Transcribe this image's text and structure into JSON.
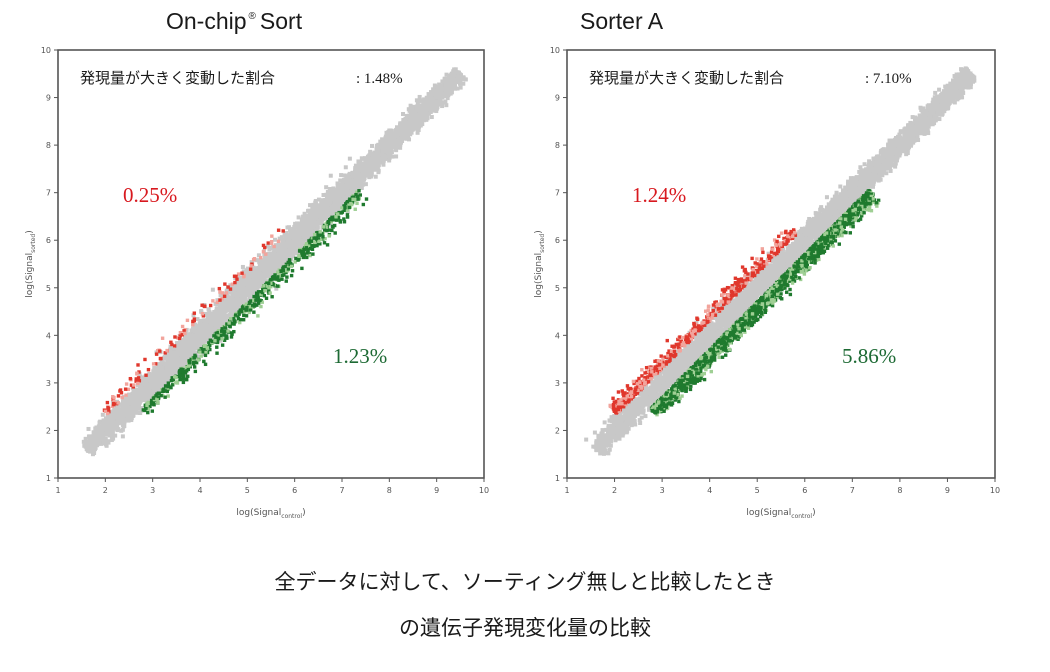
{
  "colors": {
    "background": "#c8c8c8",
    "up": "#e0372c",
    "down": "#1f7a2e",
    "up_text": "#d8191f",
    "down_text": "#1d6a34",
    "frame": "#555555"
  },
  "caption": {
    "line1": "全データに対して、ソーティング無しと比較したとき",
    "line2": "の遺伝子発現変化量の比較"
  },
  "chart_data": [
    {
      "type": "scatter",
      "panel_title": "On-chip",
      "panel_title_mark": "®",
      "panel_title_suffix": "Sort",
      "ratio_label": "発現量が大きく変動した割合",
      "ratio_value": ": 1.48%",
      "up_percent": "0.25%",
      "down_percent": "1.23%",
      "xlabel": "log(Signal",
      "xlabel_sub": "control",
      "xlabel_end": ")",
      "ylabel": "log(Signal",
      "ylabel_sub": "sorted",
      "ylabel_end": ")",
      "xlim": [
        1,
        10
      ],
      "ylim": [
        1,
        10
      ],
      "x_ticks": [
        "1",
        "2",
        "3",
        "4",
        "5",
        "6",
        "7",
        "8",
        "9",
        "10"
      ],
      "y_ticks": [
        "1",
        "2",
        "3",
        "4",
        "5",
        "6",
        "7",
        "8",
        "9",
        "10"
      ],
      "diagonal_range": [
        1.6,
        9.5
      ],
      "up_fraction": 0.0025,
      "down_fraction": 0.0123
    },
    {
      "type": "scatter",
      "panel_title": "Sorter A",
      "panel_title_mark": "",
      "panel_title_suffix": "",
      "ratio_label": "発現量が大きく変動した割合",
      "ratio_value": ": 7.10%",
      "up_percent": "1.24%",
      "down_percent": "5.86%",
      "xlabel": "log(Signal",
      "xlabel_sub": "control",
      "xlabel_end": ")",
      "ylabel": "log(Signal",
      "ylabel_sub": "sorted",
      "ylabel_end": ")",
      "xlim": [
        1,
        10
      ],
      "ylim": [
        1,
        10
      ],
      "x_ticks": [
        "1",
        "2",
        "3",
        "4",
        "5",
        "6",
        "7",
        "8",
        "9",
        "10"
      ],
      "y_ticks": [
        "1",
        "2",
        "3",
        "4",
        "5",
        "6",
        "7",
        "8",
        "9",
        "10"
      ],
      "diagonal_range": [
        1.6,
        9.5
      ],
      "up_fraction": 0.0124,
      "down_fraction": 0.0586
    }
  ]
}
